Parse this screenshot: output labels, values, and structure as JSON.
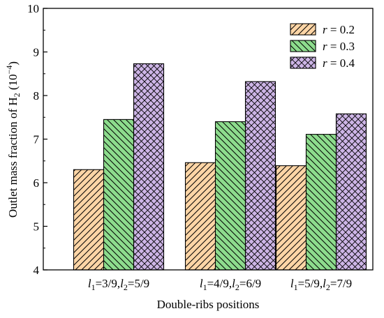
{
  "chart_data": {
    "type": "bar",
    "xlabel": "Double-ribs positions",
    "ylabel": "Outlet mass fraction of H₂ (10⁻⁴)",
    "ylim": [
      4,
      10
    ],
    "yticks": [
      4,
      5,
      6,
      7,
      8,
      9,
      10
    ],
    "grid": false,
    "legend_position": "top-right",
    "categories": [
      "l1=3/9,l2=5/9",
      "l1=4/9,l2=6/9",
      "l1=5/9,l2=7/9"
    ],
    "series": [
      {
        "name": "r = 0.2",
        "values": [
          6.3,
          6.46,
          6.39
        ],
        "color": "#fdd5a6",
        "pattern": "hatch-right"
      },
      {
        "name": "r = 0.3",
        "values": [
          7.45,
          7.4,
          7.11
        ],
        "color": "#8ddc8d",
        "pattern": "hatch-left"
      },
      {
        "name": "r = 0.4",
        "values": [
          8.73,
          8.32,
          7.58
        ],
        "color": "#cdb5e6",
        "pattern": "crosshatch"
      }
    ]
  }
}
